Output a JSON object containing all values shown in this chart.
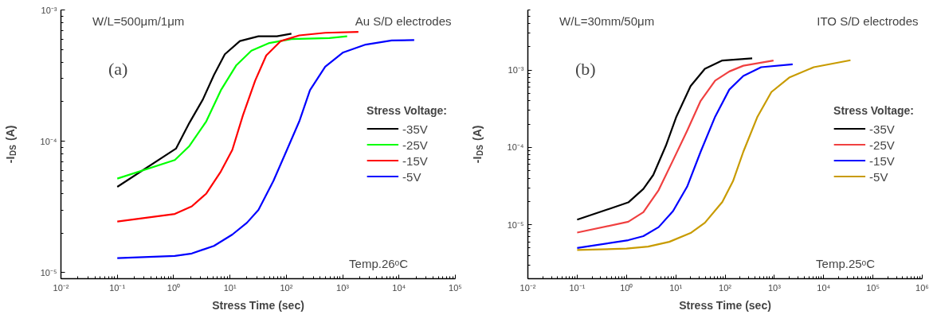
{
  "chart_data": [
    {
      "type": "line",
      "xlabel": "Stress Time (sec)",
      "ylabel": "-I$_{DS}$ (A)",
      "log": "xy",
      "legend": "right",
      "legend_title": "Stress Voltage:",
      "grid": false,
      "marker": "none",
      "line_style": "solid",
      "annotations": [
        "W/L=500μm/1μm",
        "Au S/D electrodes",
        "(a)",
        "Temp.26ᵒC"
      ],
      "xlim": [
        0.01,
        100000
      ],
      "ylim": [
        9e-06,
        0.001
      ],
      "xticks": [
        {
          "value": 0.01,
          "label": "10⁻²"
        },
        {
          "value": 0.1,
          "label": "10⁻¹"
        },
        {
          "value": 1,
          "label": "10⁰"
        },
        {
          "value": 10,
          "label": "10¹"
        },
        {
          "value": 100,
          "label": "10²"
        },
        {
          "value": 1000,
          "label": "10³"
        },
        {
          "value": 10000,
          "label": "10⁴"
        },
        {
          "value": 100000,
          "label": "10⁵"
        }
      ],
      "yticks": [
        {
          "value": 1e-05,
          "label": "10⁻⁵"
        },
        {
          "value": 0.0001,
          "label": "10⁻⁴"
        },
        {
          "value": 0.001,
          "label": "10⁻³"
        }
      ],
      "series": [
        {
          "name": "-35V",
          "color": "#000000",
          "x": [
            0.1,
            1.1,
            1.9,
            3.3,
            5.2,
            8.1,
            15,
            32,
            68,
            123
          ],
          "values": [
            4.5e-05,
            8.8e-05,
            0.000138,
            0.000208,
            0.00032,
            0.00046,
            0.00058,
            0.00063,
            0.00063,
            0.00066
          ]
        },
        {
          "name": "-25V",
          "color": "#00ff00",
          "x": [
            0.1,
            1.05,
            1.9,
            3.8,
            6.9,
            13,
            24,
            50,
            123,
            580,
            1200
          ],
          "values": [
            5.2e-05,
            7.2e-05,
            9.2e-05,
            0.000142,
            0.000245,
            0.00038,
            0.00049,
            0.00056,
            0.0006,
            0.00061,
            0.00063
          ]
        },
        {
          "name": "-15V",
          "color": "#ff0000",
          "x": [
            0.1,
            1.05,
            2.1,
            3.8,
            6.9,
            11,
            17,
            28,
            44,
            80,
            170,
            490,
            1900
          ],
          "values": [
            2.45e-05,
            2.8e-05,
            3.2e-05,
            4e-05,
            5.9e-05,
            8.6e-05,
            0.000158,
            0.00029,
            0.00045,
            0.00058,
            0.00064,
            0.00067,
            0.00068
          ]
        },
        {
          "name": "-5V",
          "color": "#0000ff",
          "x": [
            0.1,
            1.05,
            2.1,
            5.2,
            11,
            20,
            32,
            59,
            100,
            170,
            263,
            490,
            1020,
            2560,
            7400,
            18600
          ],
          "values": [
            1.29e-05,
            1.34e-05,
            1.4e-05,
            1.6e-05,
            1.95e-05,
            2.4e-05,
            3e-05,
            5e-05,
            8.4e-05,
            0.000142,
            0.000245,
            0.00037,
            0.000475,
            0.000545,
            0.000586,
            0.00059
          ]
        }
      ]
    },
    {
      "type": "line",
      "xlabel": "Stress Time (sec)",
      "ylabel": "-I$_{DS}$ (A)",
      "log": "xy",
      "legend": "right",
      "legend_title": "Stress Voltage:",
      "grid": false,
      "marker": "none",
      "line_style": "solid",
      "annotations": [
        "W/L=30mm/50μm",
        "ITO S/D electrodes",
        "(b)",
        "Temp.25ᵒC"
      ],
      "xlim": [
        0.01,
        1000000
      ],
      "ylim": [
        2e-06,
        0.006
      ],
      "xticks": [
        {
          "value": 0.01,
          "label": "10⁻²"
        },
        {
          "value": 0.1,
          "label": "10⁻¹"
        },
        {
          "value": 1,
          "label": "10⁰"
        },
        {
          "value": 10,
          "label": "10¹"
        },
        {
          "value": 100,
          "label": "10²"
        },
        {
          "value": 1000,
          "label": "10³"
        },
        {
          "value": 10000,
          "label": "10⁴"
        },
        {
          "value": 100000,
          "label": "10⁵"
        },
        {
          "value": 1000000,
          "label": "10⁶"
        }
      ],
      "yticks": [
        {
          "value": 1e-05,
          "label": "10⁻⁵"
        },
        {
          "value": 0.0001,
          "label": "10⁻⁴"
        },
        {
          "value": 0.001,
          "label": "10⁻³"
        }
      ],
      "series": [
        {
          "name": "-35V",
          "color": "#000000",
          "x": [
            0.1,
            1.09,
            2.2,
            3.5,
            6.3,
            10.3,
            20,
            39,
            88,
            355
          ],
          "values": [
            1.16e-05,
            1.94e-05,
            2.9e-05,
            4.4e-05,
            0.000105,
            0.00025,
            0.00062,
            0.00104,
            0.00133,
            0.00142
          ]
        },
        {
          "name": "-25V",
          "color": "#f04040",
          "x": [
            0.1,
            1.09,
            2.2,
            4.5,
            8.8,
            17,
            32,
            63,
            122,
            235,
            960
          ],
          "values": [
            7.9e-06,
            1.09e-05,
            1.45e-05,
            2.8e-05,
            6.8e-05,
            0.000164,
            0.0004,
            0.00073,
            0.00096,
            0.00114,
            0.00133
          ]
        },
        {
          "name": "-15V",
          "color": "#0000ff",
          "x": [
            0.1,
            1.09,
            2.2,
            4.5,
            8.8,
            17,
            32,
            63,
            122,
            235,
            540,
            2350
          ],
          "values": [
            5e-06,
            6.3e-06,
            7.1e-06,
            9.3e-06,
            1.5e-05,
            3.1e-05,
            8.8e-05,
            0.00025,
            0.00056,
            0.00084,
            0.00109,
            0.00119
          ]
        },
        {
          "name": "-5V",
          "color": "#c89b00",
          "x": [
            0.1,
            1,
            2.75,
            7.4,
            20,
            39,
            88,
            145,
            235,
            455,
            870,
            2000,
            6300,
            35000
          ],
          "values": [
            4.7e-06,
            4.9e-06,
            5.2e-06,
            6e-06,
            7.8e-06,
            1.06e-05,
            1.97e-05,
            3.66e-05,
            8.8e-05,
            0.00025,
            0.00052,
            0.0008,
            0.00109,
            0.00134
          ]
        }
      ]
    }
  ]
}
